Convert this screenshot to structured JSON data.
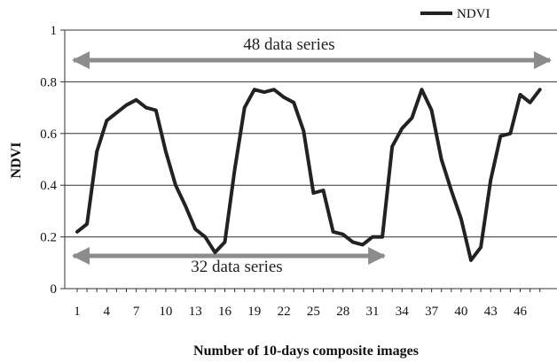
{
  "chart_data": {
    "type": "line",
    "title": "",
    "xlabel": "Number of 10-days composite images",
    "ylabel": "NDVI",
    "xlim": [
      1,
      48
    ],
    "ylim": [
      0,
      1
    ],
    "grid": true,
    "legend_position": "top-right",
    "x_ticks": [
      "1",
      "4",
      "7",
      "10",
      "13",
      "16",
      "19",
      "22",
      "25",
      "28",
      "31",
      "34",
      "37",
      "40",
      "43",
      "46"
    ],
    "y_ticks": [
      "0",
      "0.2",
      "0.4",
      "0.6",
      "0.8",
      "1"
    ],
    "series": [
      {
        "name": "NDVI",
        "color": "#222222",
        "x": [
          1,
          2,
          3,
          4,
          5,
          6,
          7,
          8,
          9,
          10,
          11,
          12,
          13,
          14,
          15,
          16,
          17,
          18,
          19,
          20,
          21,
          22,
          23,
          24,
          25,
          26,
          27,
          28,
          29,
          30,
          31,
          32,
          33,
          34,
          35,
          36,
          37,
          38,
          39,
          40,
          41,
          42,
          43,
          44,
          45,
          46,
          47,
          48
        ],
        "values": [
          0.22,
          0.25,
          0.53,
          0.65,
          0.68,
          0.71,
          0.73,
          0.7,
          0.69,
          0.53,
          0.4,
          0.32,
          0.23,
          0.2,
          0.14,
          0.18,
          0.46,
          0.7,
          0.77,
          0.76,
          0.77,
          0.74,
          0.72,
          0.61,
          0.37,
          0.38,
          0.22,
          0.21,
          0.18,
          0.17,
          0.2,
          0.2,
          0.55,
          0.62,
          0.66,
          0.77,
          0.69,
          0.5,
          0.38,
          0.27,
          0.11,
          0.16,
          0.42,
          0.59,
          0.6,
          0.75,
          0.72,
          0.77
        ]
      }
    ],
    "annotations": [
      {
        "text": "48 data series",
        "from": 1,
        "to": 48,
        "arrow_color": "#8c8c8c"
      },
      {
        "text": "32 data series",
        "from": 1,
        "to": 32,
        "arrow_color": "#8c8c8c"
      }
    ]
  }
}
